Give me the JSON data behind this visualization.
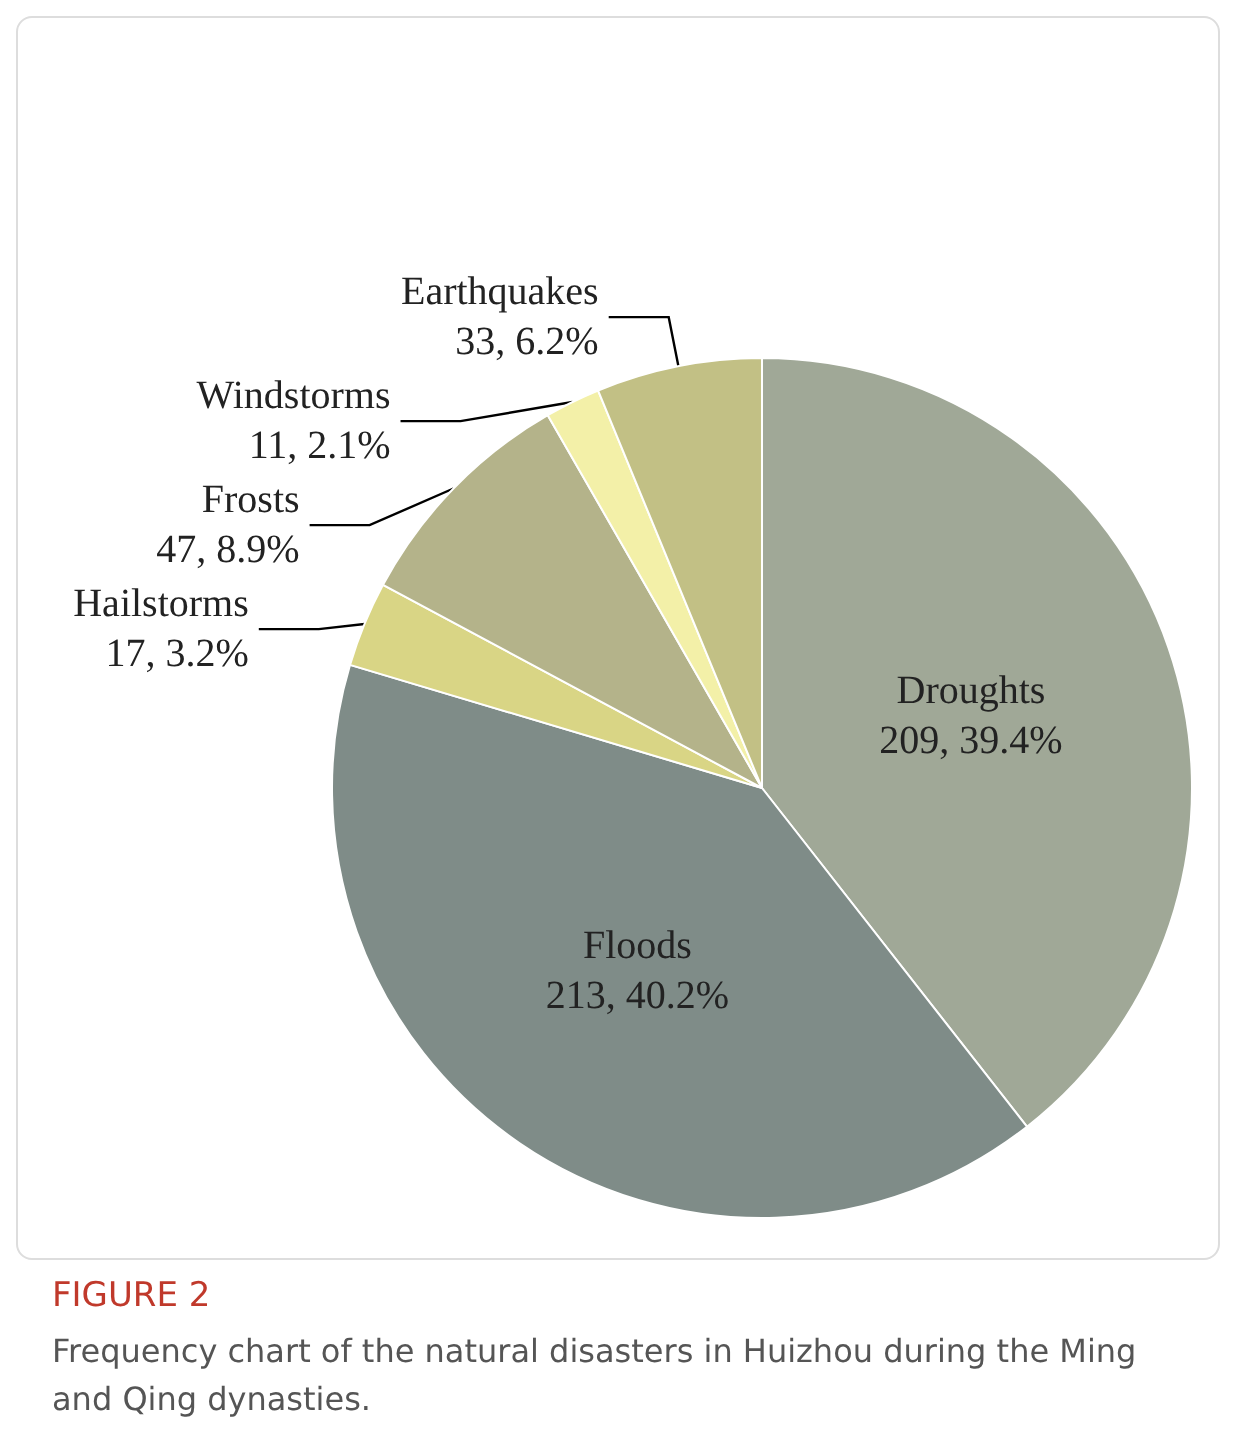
{
  "chart_data": {
    "type": "pie",
    "title": "FIGURE 2",
    "categories": [
      "Droughts",
      "Floods",
      "Hailstorms",
      "Frosts",
      "Windstorms",
      "Earthquakes"
    ],
    "values": [
      209,
      213,
      17,
      47,
      11,
      33
    ],
    "value_labels": [
      "209, 39.4%",
      "213, 40.2%",
      "17, 3.2%",
      "47, 8.9%",
      "11, 2.1%",
      "33, 6.2%"
    ],
    "colors": [
      "#a0a897",
      "#7f8c88",
      "#d9d585",
      "#b4b38a",
      "#f3f0a8",
      "#c2c085"
    ],
    "annotations": [
      "Frequency chart of the natural disasters in Huizhou during the Ming and Qing dynasties."
    ],
    "legend": false
  }
}
